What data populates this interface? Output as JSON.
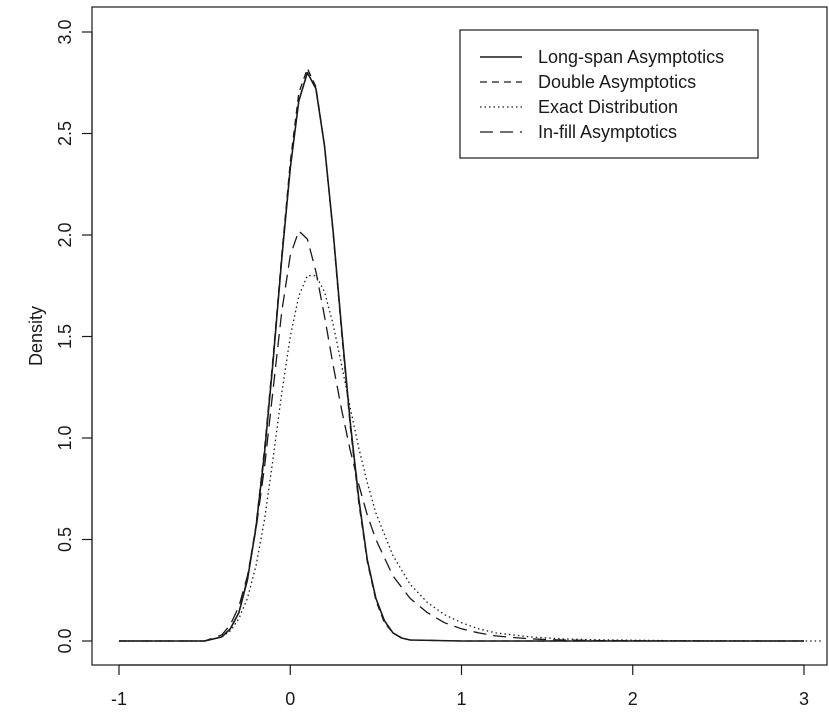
{
  "chart_data": {
    "type": "line",
    "title": "",
    "xlabel": "",
    "ylabel": "Density",
    "xlim": [
      -1,
      3
    ],
    "ylim": [
      0,
      3
    ],
    "xticks": [
      "-1",
      "0",
      "1",
      "2",
      "3"
    ],
    "yticks": [
      "0.0",
      "0.5",
      "1.0",
      "1.5",
      "2.0",
      "2.5",
      "3.0"
    ],
    "legend_position": "top-right",
    "grid": false,
    "series": [
      {
        "name": "Long-span Asymptotics",
        "style": "solid",
        "x": [
          -1.0,
          -0.5,
          -0.45,
          -0.4,
          -0.35,
          -0.3,
          -0.25,
          -0.2,
          -0.15,
          -0.1,
          -0.05,
          0.0,
          0.05,
          0.1,
          0.15,
          0.2,
          0.25,
          0.3,
          0.35,
          0.4,
          0.45,
          0.5,
          0.55,
          0.6,
          0.65,
          0.7,
          1.0,
          1.5,
          2.0,
          2.5,
          3.0
        ],
        "y": [
          0.0,
          0.0,
          0.01,
          0.02,
          0.06,
          0.14,
          0.3,
          0.56,
          0.93,
          1.38,
          1.88,
          2.33,
          2.66,
          2.8,
          2.72,
          2.44,
          2.02,
          1.54,
          1.08,
          0.7,
          0.4,
          0.21,
          0.1,
          0.04,
          0.015,
          0.005,
          0.0,
          0.0,
          0.0,
          0.0,
          0.0
        ]
      },
      {
        "name": "Double Asymptotics",
        "style": "dashed",
        "x": [
          -1.0,
          -0.5,
          -0.45,
          -0.4,
          -0.35,
          -0.3,
          -0.25,
          -0.2,
          -0.15,
          -0.1,
          -0.05,
          0.0,
          0.05,
          0.1,
          0.15,
          0.2,
          0.25,
          0.3,
          0.35,
          0.4,
          0.45,
          0.5,
          0.55,
          0.6,
          0.65,
          0.7,
          1.0,
          1.5,
          2.0,
          2.5,
          3.0
        ],
        "y": [
          0.0,
          0.0,
          0.01,
          0.02,
          0.06,
          0.14,
          0.31,
          0.57,
          0.95,
          1.4,
          1.9,
          2.36,
          2.7,
          2.82,
          2.73,
          2.44,
          2.01,
          1.52,
          1.06,
          0.68,
          0.39,
          0.2,
          0.09,
          0.04,
          0.015,
          0.005,
          0.0,
          0.0,
          0.0,
          0.0,
          0.0
        ]
      },
      {
        "name": "Exact Distribution",
        "style": "dotted",
        "x": [
          -1.0,
          -0.5,
          -0.4,
          -0.35,
          -0.3,
          -0.25,
          -0.2,
          -0.15,
          -0.1,
          -0.05,
          0.0,
          0.05,
          0.1,
          0.15,
          0.2,
          0.25,
          0.3,
          0.35,
          0.4,
          0.45,
          0.5,
          0.6,
          0.7,
          0.8,
          0.9,
          1.0,
          1.1,
          1.2,
          1.3,
          1.4,
          1.5,
          1.6,
          1.8,
          2.0,
          2.2,
          2.5,
          2.8,
          3.0,
          3.1
        ],
        "y": [
          0.0,
          0.0,
          0.02,
          0.05,
          0.11,
          0.21,
          0.37,
          0.6,
          0.9,
          1.22,
          1.5,
          1.7,
          1.8,
          1.8,
          1.72,
          1.56,
          1.36,
          1.15,
          0.95,
          0.78,
          0.63,
          0.42,
          0.28,
          0.19,
          0.13,
          0.09,
          0.06,
          0.04,
          0.03,
          0.02,
          0.015,
          0.01,
          0.006,
          0.004,
          0.002,
          0.001,
          0.0,
          0.0,
          0.0
        ]
      },
      {
        "name": "In-fill Asymptotics",
        "style": "longdash",
        "x": [
          -1.0,
          -0.5,
          -0.4,
          -0.35,
          -0.3,
          -0.25,
          -0.2,
          -0.15,
          -0.1,
          -0.05,
          0.0,
          0.05,
          0.1,
          0.15,
          0.2,
          0.25,
          0.3,
          0.35,
          0.4,
          0.45,
          0.5,
          0.6,
          0.7,
          0.8,
          0.9,
          1.0,
          1.1,
          1.2,
          1.3,
          1.4,
          1.5,
          1.6,
          1.8,
          2.0,
          2.5,
          3.0
        ],
        "y": [
          0.0,
          0.0,
          0.03,
          0.08,
          0.17,
          0.32,
          0.55,
          0.86,
          1.24,
          1.62,
          1.9,
          2.02,
          1.98,
          1.82,
          1.6,
          1.36,
          1.14,
          0.94,
          0.77,
          0.62,
          0.5,
          0.32,
          0.21,
          0.14,
          0.09,
          0.06,
          0.04,
          0.025,
          0.017,
          0.011,
          0.007,
          0.005,
          0.002,
          0.001,
          0.0,
          0.0
        ]
      }
    ]
  }
}
